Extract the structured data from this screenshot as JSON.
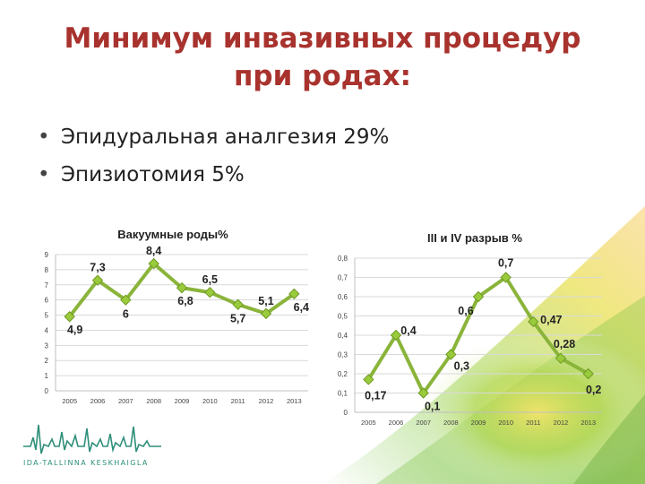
{
  "slide": {
    "title_line1": "Минимум инвазивных процедур",
    "title_line2": "при родах:",
    "bullets": [
      {
        "marker": "•",
        "text": "Эпидуральная аналгезия 29%"
      },
      {
        "marker": "•",
        "text": "Эпизиотомия 5%"
      }
    ],
    "logo_text": "IDA-TALLINNA KESKHAIGLA"
  },
  "colors": {
    "title": "#a8322d",
    "line": "#8ab43a",
    "marker": "#9acb3c",
    "grid": "#d9d9d9"
  },
  "chart_data": [
    {
      "type": "line",
      "title": "Вакуумные роды%",
      "x": [
        "2005",
        "2006",
        "2007",
        "2008",
        "2009",
        "2010",
        "2011",
        "2012",
        "2013"
      ],
      "values": [
        4.9,
        7.3,
        6,
        8.4,
        6.8,
        6.5,
        5.7,
        5.1,
        6.4
      ],
      "data_labels": [
        "4,9",
        "7,3",
        "6",
        "8,4",
        "6,8",
        "6,5",
        "5,7",
        "5,1",
        "6,4"
      ],
      "ylim": [
        0,
        9
      ],
      "yticks": [
        "0",
        "1",
        "2",
        "3",
        "4",
        "5",
        "6",
        "7",
        "8",
        "9"
      ],
      "grid": true
    },
    {
      "type": "line",
      "title": "III и IV разрыв %",
      "x": [
        "2005",
        "2006",
        "2007",
        "2008",
        "2009",
        "2010",
        "2011",
        "2012",
        "2013"
      ],
      "values": [
        0.17,
        0.4,
        0.1,
        0.3,
        0.6,
        0.7,
        0.47,
        0.28,
        0.2
      ],
      "data_labels": [
        "0,17",
        "0,4",
        "0,1",
        "0,3",
        "0,6",
        "0,7",
        "0,47",
        "0,28",
        "0,2"
      ],
      "ylim": [
        0,
        0.8
      ],
      "yticks": [
        "0",
        "0,1",
        "0,2",
        "0,3",
        "0,4",
        "0,5",
        "0,6",
        "0,7",
        "0,8"
      ],
      "grid": true
    }
  ]
}
